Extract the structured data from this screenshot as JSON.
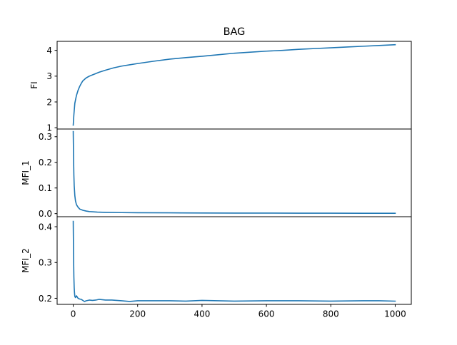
{
  "chart_data": {
    "type": "line",
    "title": "BAG",
    "shared_x": {
      "xlim": [
        -50,
        1050
      ],
      "ticks": [
        0,
        200,
        400,
        600,
        800,
        1000
      ],
      "tick_labels": [
        "0",
        "200",
        "400",
        "600",
        "800",
        "1000"
      ],
      "label": ""
    },
    "line_color": "#1f77b4",
    "panels": [
      {
        "ylabel": "FI",
        "ylim": [
          0.95,
          4.35
        ],
        "yticks": [
          1,
          2,
          3,
          4
        ],
        "ytick_labels": [
          "1",
          "2",
          "3",
          "4"
        ],
        "series": [
          {
            "name": "FI",
            "x": [
              0,
              2,
              5,
              10,
              15,
              20,
              25,
              30,
              40,
              50,
              60,
              70,
              80,
              100,
              125,
              150,
              175,
              200,
              250,
              300,
              350,
              400,
              450,
              500,
              550,
              600,
              650,
              700,
              750,
              800,
              850,
              900,
              950,
              1000
            ],
            "values": [
              1.1,
              1.5,
              1.95,
              2.25,
              2.45,
              2.6,
              2.72,
              2.82,
              2.93,
              3.0,
              3.05,
              3.1,
              3.15,
              3.23,
              3.32,
              3.39,
              3.44,
              3.49,
              3.58,
              3.66,
              3.72,
              3.77,
              3.83,
              3.89,
              3.93,
              3.97,
              4.0,
              4.04,
              4.07,
              4.1,
              4.13,
              4.16,
              4.19,
              4.22
            ]
          }
        ]
      },
      {
        "ylabel": "MFI_1",
        "ylim": [
          -0.012,
          0.33
        ],
        "yticks": [
          0.0,
          0.1,
          0.2,
          0.3
        ],
        "ytick_labels": [
          "0.0",
          "0.1",
          "0.2",
          "0.3"
        ],
        "series": [
          {
            "name": "MFI_1",
            "x": [
              0,
              1,
              2,
              3,
              5,
              7,
              10,
              15,
              20,
              30,
              40,
              50,
              75,
              100,
              150,
              200,
              300,
              400,
              500,
              600,
              700,
              800,
              900,
              1000
            ],
            "values": [
              0.32,
              0.22,
              0.15,
              0.11,
              0.07,
              0.05,
              0.035,
              0.025,
              0.018,
              0.013,
              0.01,
              0.008,
              0.006,
              0.005,
              0.004,
              0.0035,
              0.003,
              0.0025,
              0.002,
              0.002,
              0.0018,
              0.0016,
              0.0015,
              0.0015
            ]
          }
        ]
      },
      {
        "ylabel": "MFI_2",
        "ylim": [
          0.183,
          0.428
        ],
        "yticks": [
          0.2,
          0.3,
          0.4
        ],
        "ytick_labels": [
          "0.2",
          "0.3",
          "0.4"
        ],
        "series": [
          {
            "name": "MFI_2",
            "x": [
              0,
              1,
              2,
              3,
              4,
              5,
              7,
              10,
              15,
              20,
              25,
              30,
              35,
              40,
              50,
              60,
              70,
              80,
              90,
              100,
              120,
              150,
              175,
              200,
              250,
              300,
              350,
              400,
              450,
              500,
              600,
              700,
              800,
              900,
              950,
              1000
            ],
            "values": [
              0.415,
              0.32,
              0.26,
              0.23,
              0.215,
              0.205,
              0.202,
              0.207,
              0.2,
              0.198,
              0.197,
              0.194,
              0.191,
              0.193,
              0.195,
              0.194,
              0.195,
              0.197,
              0.196,
              0.195,
              0.195,
              0.193,
              0.191,
              0.193,
              0.193,
              0.193,
              0.192,
              0.194,
              0.193,
              0.192,
              0.193,
              0.193,
              0.192,
              0.193,
              0.193,
              0.192
            ]
          }
        ]
      }
    ]
  }
}
